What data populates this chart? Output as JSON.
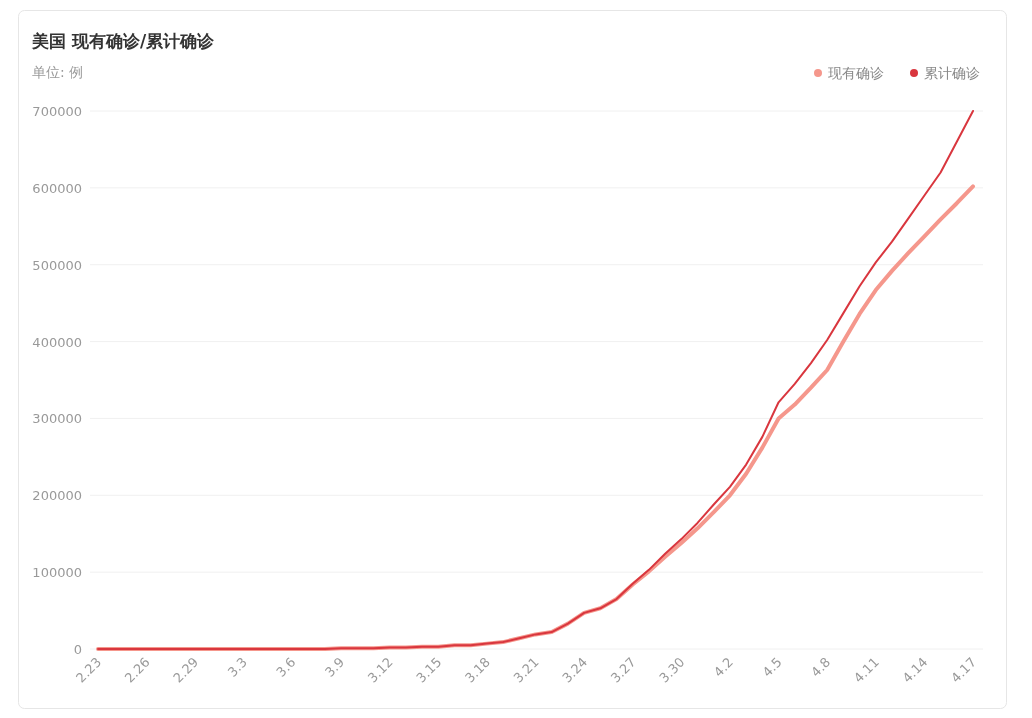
{
  "chart_data": {
    "type": "line",
    "title": "美国 现有确诊/累计确诊",
    "subtitle": "单位: 例",
    "categories": [
      "2.23",
      null,
      null,
      "2.26",
      null,
      null,
      "2.29",
      null,
      null,
      "3.3",
      null,
      null,
      "3.6",
      null,
      null,
      "3.9",
      null,
      null,
      "3.12",
      null,
      null,
      "3.15",
      null,
      null,
      "3.18",
      null,
      null,
      "3.21",
      null,
      null,
      "3.24",
      null,
      null,
      "3.27",
      null,
      null,
      "3.30",
      null,
      null,
      "4.2",
      null,
      null,
      "4.5",
      null,
      null,
      "4.8",
      null,
      null,
      "4.11",
      null,
      null,
      "4.14",
      null,
      null,
      "4.17"
    ],
    "series": [
      {
        "name": "现有确诊",
        "color": "#f5978c",
        "values": [
          0,
          0,
          0,
          0,
          0,
          0,
          0,
          0,
          0,
          0,
          0,
          0,
          0,
          0,
          0,
          1000,
          1000,
          1000,
          2000,
          2000,
          3000,
          3000,
          5000,
          5000,
          7000,
          9000,
          14000,
          19000,
          22000,
          33000,
          47000,
          53000,
          65000,
          84000,
          101000,
          120000,
          138000,
          157000,
          178000,
          200000,
          228000,
          262000,
          300000,
          318000,
          340000,
          363000,
          400000,
          436000,
          467000,
          492000,
          515000,
          537000,
          559000,
          580000,
          602000
        ]
      },
      {
        "name": "累计确诊",
        "color": "#d9363e",
        "values": [
          0,
          0,
          0,
          0,
          0,
          0,
          0,
          0,
          0,
          0,
          0,
          0,
          0,
          0,
          0,
          1000,
          1000,
          1000,
          2000,
          2000,
          3000,
          3000,
          5000,
          5000,
          7000,
          9000,
          14000,
          19000,
          22000,
          33000,
          47000,
          53000,
          65000,
          85000,
          103000,
          124000,
          143000,
          164000,
          188000,
          211000,
          240000,
          276000,
          321000,
          345000,
          372000,
          402000,
          437000,
          472000,
          503000,
          530000,
          560000,
          590000,
          620000,
          660000,
          700000
        ]
      }
    ],
    "ylim": [
      0,
      700000
    ],
    "yticks": [
      0,
      100000,
      200000,
      300000,
      400000,
      500000,
      600000,
      700000
    ],
    "grid": "y",
    "legend": "top right"
  }
}
